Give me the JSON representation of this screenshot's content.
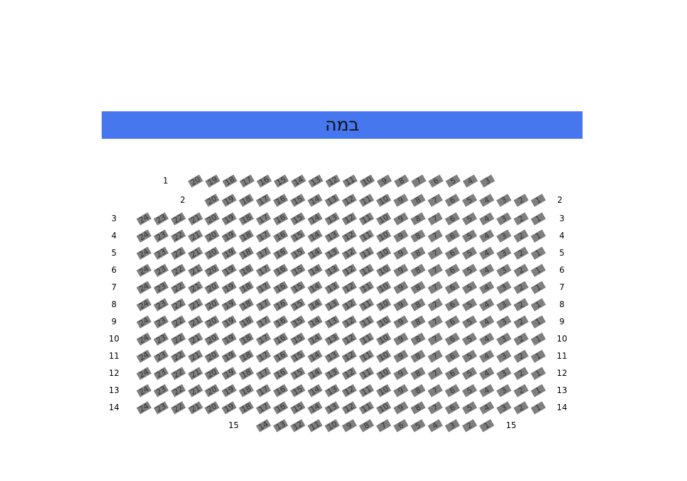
{
  "stage": {
    "label": "במה",
    "color": "#4677ee"
  },
  "seat_color": "#7f7f7f",
  "rows": [
    {
      "label": "1",
      "seats": [
        20,
        19,
        18,
        17,
        16,
        15,
        14,
        13,
        12,
        11,
        10,
        9,
        8,
        7,
        6,
        5,
        4,
        3
      ]
    },
    {
      "label": "2",
      "seats": [
        20,
        19,
        18,
        17,
        16,
        15,
        14,
        13,
        12,
        11,
        10,
        9,
        8,
        7,
        6,
        5,
        4,
        3,
        2,
        1
      ]
    },
    {
      "label": "3",
      "seats": [
        24,
        23,
        22,
        21,
        20,
        19,
        18,
        17,
        16,
        15,
        14,
        13,
        12,
        11,
        10,
        9,
        8,
        7,
        6,
        5,
        4,
        3,
        2,
        1
      ]
    },
    {
      "label": "4",
      "seats": [
        24,
        23,
        22,
        21,
        20,
        19,
        18,
        17,
        16,
        15,
        14,
        13,
        12,
        11,
        10,
        9,
        8,
        7,
        6,
        5,
        4,
        3,
        2,
        1
      ]
    },
    {
      "label": "5",
      "seats": [
        24,
        23,
        22,
        21,
        20,
        19,
        18,
        17,
        16,
        15,
        14,
        13,
        12,
        11,
        10,
        9,
        8,
        7,
        6,
        5,
        4,
        3,
        2,
        1
      ]
    },
    {
      "label": "6",
      "seats": [
        24,
        23,
        22,
        21,
        20,
        19,
        18,
        17,
        16,
        15,
        14,
        13,
        12,
        11,
        10,
        9,
        8,
        7,
        6,
        5,
        4,
        3,
        2,
        1
      ]
    },
    {
      "label": "7",
      "seats": [
        24,
        23,
        22,
        21,
        20,
        19,
        18,
        17,
        16,
        15,
        14,
        13,
        12,
        11,
        10,
        9,
        8,
        7,
        6,
        5,
        4,
        3,
        2,
        1
      ]
    },
    {
      "label": "8",
      "seats": [
        24,
        23,
        22,
        21,
        20,
        19,
        18,
        17,
        16,
        15,
        14,
        13,
        12,
        11,
        10,
        9,
        8,
        7,
        6,
        5,
        4,
        3,
        2,
        1
      ]
    },
    {
      "label": "9",
      "seats": [
        24,
        23,
        22,
        21,
        20,
        19,
        18,
        17,
        16,
        15,
        14,
        13,
        12,
        11,
        10,
        9,
        8,
        7,
        6,
        5,
        4,
        3,
        2,
        1
      ]
    },
    {
      "label": "10",
      "seats": [
        24,
        23,
        22,
        21,
        20,
        19,
        18,
        17,
        16,
        15,
        14,
        13,
        12,
        11,
        10,
        9,
        8,
        7,
        6,
        5,
        4,
        3,
        2,
        1
      ]
    },
    {
      "label": "11",
      "seats": [
        24,
        23,
        22,
        21,
        20,
        19,
        18,
        17,
        16,
        15,
        14,
        13,
        12,
        11,
        10,
        9,
        8,
        7,
        6,
        5,
        4,
        3,
        2,
        1
      ]
    },
    {
      "label": "12",
      "seats": [
        24,
        23,
        22,
        21,
        20,
        19,
        18,
        17,
        16,
        15,
        14,
        13,
        12,
        11,
        10,
        9,
        8,
        7,
        6,
        5,
        4,
        3,
        2,
        1
      ]
    },
    {
      "label": "13",
      "seats": [
        24,
        23,
        22,
        21,
        20,
        19,
        18,
        17,
        16,
        15,
        14,
        13,
        12,
        11,
        10,
        9,
        8,
        7,
        6,
        5,
        4,
        3,
        2,
        1
      ]
    },
    {
      "label": "14",
      "seats": [
        24,
        23,
        22,
        21,
        20,
        19,
        18,
        17,
        16,
        15,
        14,
        13,
        12,
        11,
        10,
        9,
        8,
        7,
        6,
        5,
        4,
        3,
        2,
        1
      ]
    },
    {
      "label": "15",
      "seats": [
        14,
        13,
        12,
        11,
        10,
        9,
        8,
        7,
        6,
        5,
        4,
        3,
        2,
        1
      ]
    }
  ]
}
